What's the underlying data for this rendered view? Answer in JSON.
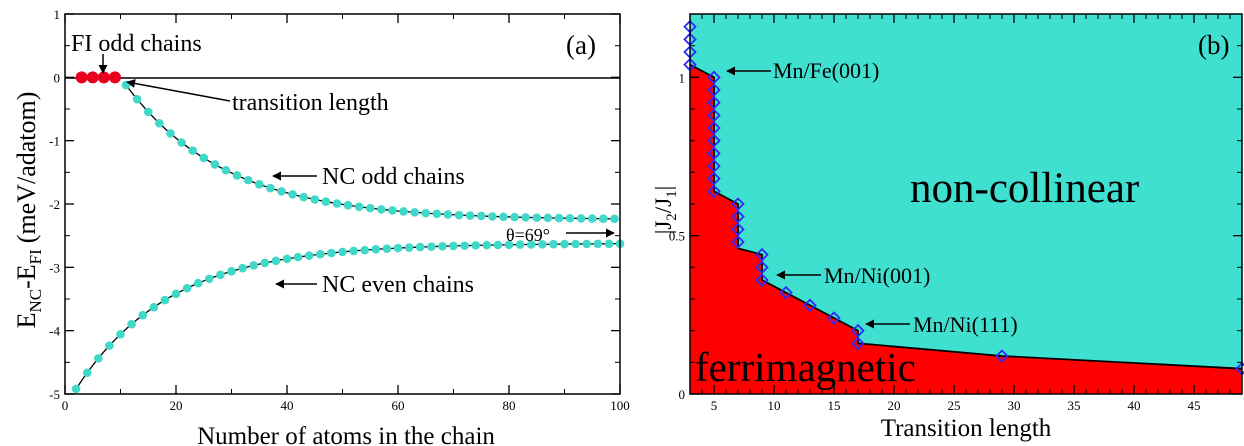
{
  "chart_data": [
    {
      "type": "scatter",
      "panel_label": "(a)",
      "xlabel": "Number of atoms in the chain",
      "ylabel_main": "E",
      "ylabel_sub1": "NC",
      "ylabel_mid": "-E",
      "ylabel_sub2": "FI",
      "ylabel_unit": "(meV/adatom)",
      "xlim": [
        0,
        100
      ],
      "ylim": [
        -5,
        1
      ],
      "xticks": [
        "0",
        "20",
        "40",
        "60",
        "80",
        "100"
      ],
      "yticks": [
        "1",
        "0",
        "-1",
        "-2",
        "-3",
        "-4",
        "-5"
      ],
      "series": [
        {
          "name": "FI odd chains",
          "color": "#e8001c",
          "x": [
            3,
            5,
            7,
            9
          ],
          "y": [
            0,
            0,
            0,
            0
          ]
        },
        {
          "name": "NC odd chains",
          "color": "#40d8c8",
          "A": -2.25,
          "B": 2.25,
          "tau": 18,
          "x0": 10,
          "x_start": 11,
          "x_end": 99,
          "x_step": 2
        },
        {
          "name": "NC even chains",
          "color": "#40d8c8",
          "A": -2.62,
          "B": -2.3,
          "tau": 17,
          "x0": 2,
          "x_start": 2,
          "x_end": 100,
          "x_step": 2
        }
      ],
      "annotations": [
        {
          "text": "FI odd chains",
          "target": [
            6,
            0
          ]
        },
        {
          "text": "transition length",
          "target": [
            10,
            0
          ]
        },
        {
          "text": "NC odd chains",
          "target": [
            37,
            -1.48
          ]
        },
        {
          "text": "NC even chains",
          "target": [
            38,
            -2.85
          ]
        },
        {
          "text": "θ=69°",
          "target": [
            100,
            -2.3
          ]
        }
      ]
    },
    {
      "type": "area",
      "panel_label": "(b)",
      "xlabel": "Transition length",
      "ylabel": "|J2/J1|",
      "ylabel_pre": "|J",
      "ylabel_sub1": "2",
      "ylabel_mid": "/J",
      "ylabel_sub2": "1",
      "ylabel_post": "|",
      "xlim": [
        3,
        49
      ],
      "ylim": [
        0,
        1.2
      ],
      "xticks": [
        "5",
        "10",
        "15",
        "20",
        "25",
        "30",
        "35",
        "40",
        "45"
      ],
      "yticks": [
        "0",
        "0.5",
        "1"
      ],
      "region_labels": {
        "upper": "non-collinear",
        "lower": "ferrimagnetic"
      },
      "colors": {
        "upper": "#40e0d0",
        "lower": "#ff0000",
        "marker": "#2b2bff"
      },
      "boundary": [
        [
          3,
          1.04
        ],
        [
          5,
          1.0
        ],
        [
          5,
          0.64
        ],
        [
          7,
          0.6
        ],
        [
          7,
          0.46
        ],
        [
          9,
          0.44
        ],
        [
          9,
          0.36
        ],
        [
          11,
          0.32
        ],
        [
          13,
          0.28
        ],
        [
          15,
          0.24
        ],
        [
          17,
          0.2
        ],
        [
          17,
          0.16
        ],
        [
          29,
          0.12
        ],
        [
          49,
          0.08
        ]
      ],
      "markers": [
        [
          3,
          1.04
        ],
        [
          3,
          1.08
        ],
        [
          3,
          1.12
        ],
        [
          3,
          1.16
        ],
        [
          5,
          1.0
        ],
        [
          5,
          0.96
        ],
        [
          5,
          0.92
        ],
        [
          5,
          0.88
        ],
        [
          5,
          0.84
        ],
        [
          5,
          0.8
        ],
        [
          5,
          0.76
        ],
        [
          5,
          0.72
        ],
        [
          5,
          0.68
        ],
        [
          5,
          0.64
        ],
        [
          7,
          0.6
        ],
        [
          7,
          0.56
        ],
        [
          7,
          0.52
        ],
        [
          7,
          0.48
        ],
        [
          9,
          0.44
        ],
        [
          9,
          0.4
        ],
        [
          9,
          0.36
        ],
        [
          11,
          0.32
        ],
        [
          13,
          0.28
        ],
        [
          15,
          0.24
        ],
        [
          17,
          0.2
        ],
        [
          17,
          0.16
        ],
        [
          29,
          0.12
        ],
        [
          49,
          0.08
        ]
      ],
      "annotations": [
        {
          "text": "Mn/Fe(001)",
          "target": [
            5,
            1.0
          ]
        },
        {
          "text": "Mn/Ni(001)",
          "target": [
            9,
            0.37
          ]
        },
        {
          "text": "Mn/Ni(111)",
          "target": [
            17,
            0.2
          ]
        }
      ]
    }
  ]
}
